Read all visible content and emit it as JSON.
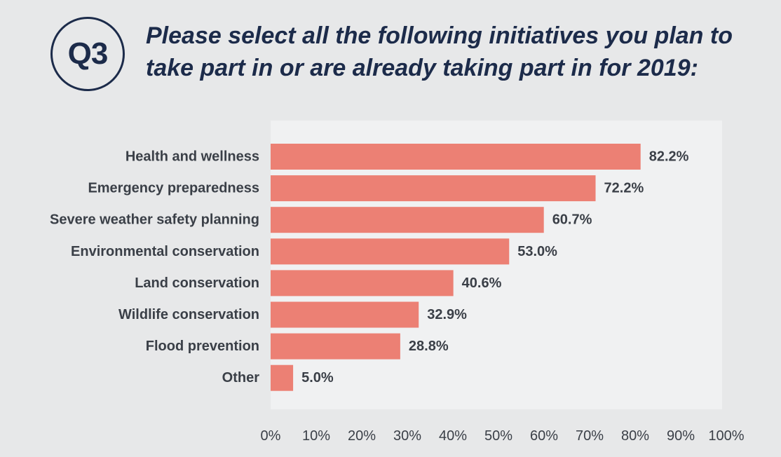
{
  "badge": "Q3",
  "title_line1": "Please select all the following initiatives you plan to",
  "title_line2": "take part in or are already taking part in for 2019:",
  "colors": {
    "bar": "#ec8074",
    "plot_bg": "#f0f1f2",
    "page_bg": "#e7e8e9",
    "title": "#1c2b4a",
    "label": "#3a3f47"
  },
  "chart_data": {
    "type": "bar",
    "orientation": "horizontal",
    "categories": [
      "Health and wellness",
      "Emergency preparedness",
      "Severe weather safety planning",
      "Environmental conservation",
      "Land conservation",
      "Wildlife conservation",
      "Flood prevention",
      "Other"
    ],
    "values": [
      82.2,
      72.2,
      60.7,
      53.0,
      40.6,
      32.9,
      28.8,
      5.0
    ],
    "value_labels": [
      "82.2%",
      "72.2%",
      "60.7%",
      "53.0%",
      "40.6%",
      "32.9%",
      "28.8%",
      "5.0%"
    ],
    "x_ticks": [
      "0%",
      "10%",
      "20%",
      "30%",
      "40%",
      "50%",
      "60%",
      "70%",
      "80%",
      "90%",
      "100%"
    ],
    "xlim": [
      0,
      100
    ],
    "grid": false,
    "legend": "none"
  }
}
